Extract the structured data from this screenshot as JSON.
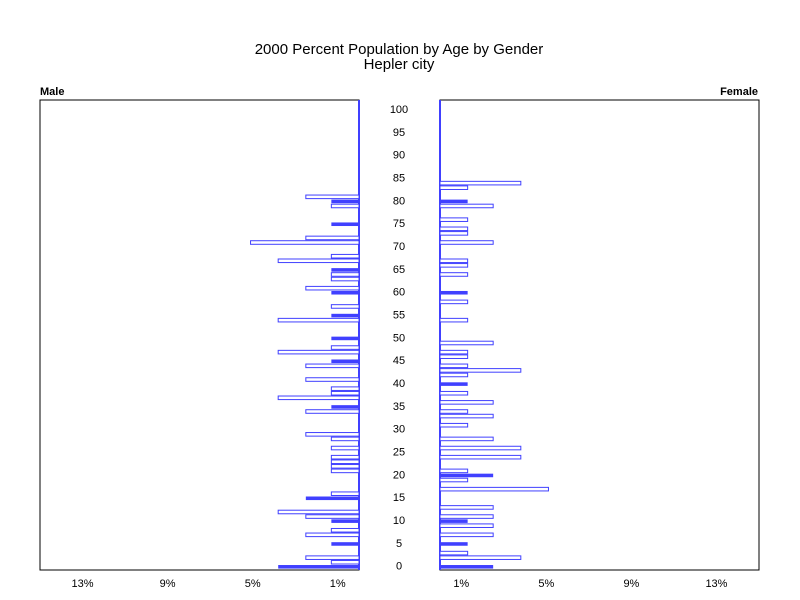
{
  "chart_data": {
    "type": "pyramid",
    "title": "2000 Percent Population by Age by Gender",
    "subtitle": "Hepler city",
    "ages": [
      0,
      1,
      2,
      3,
      4,
      5,
      6,
      7,
      8,
      9,
      10,
      11,
      12,
      13,
      14,
      15,
      16,
      17,
      18,
      19,
      20,
      21,
      22,
      23,
      24,
      25,
      26,
      27,
      28,
      29,
      30,
      31,
      32,
      33,
      34,
      35,
      36,
      37,
      38,
      39,
      40,
      41,
      42,
      43,
      44,
      45,
      46,
      47,
      48,
      49,
      50,
      51,
      52,
      53,
      54,
      55,
      56,
      57,
      58,
      59,
      60,
      61,
      62,
      63,
      64,
      65,
      66,
      67,
      68,
      69,
      70,
      71,
      72,
      73,
      74,
      75,
      76,
      77,
      78,
      79,
      80,
      81,
      82,
      83,
      84,
      85,
      86,
      87,
      88,
      89,
      90,
      91,
      92,
      93,
      94,
      95,
      96,
      97,
      98,
      99,
      100
    ],
    "age_lim": [
      -0.7,
      102.2
    ],
    "age_ticks": [
      0,
      5,
      10,
      15,
      20,
      25,
      30,
      35,
      40,
      45,
      50,
      55,
      60,
      65,
      70,
      75,
      80,
      85,
      90,
      95,
      100
    ],
    "series": [
      {
        "name": "Male",
        "color": "#4040ff",
        "xlim": [
          15,
          0
        ],
        "xticks": [
          {
            "value": 13,
            "label": "13%"
          },
          {
            "value": 9,
            "label": "9%"
          },
          {
            "value": 5,
            "label": "5%"
          },
          {
            "value": 1,
            "label": "1%"
          }
        ],
        "values": [
          3.8,
          1.3,
          2.5,
          0,
          0,
          1.3,
          0,
          2.5,
          1.3,
          0,
          1.3,
          2.5,
          3.8,
          0,
          0,
          2.5,
          1.3,
          0,
          0,
          0,
          0,
          1.3,
          1.3,
          1.3,
          1.3,
          0,
          1.3,
          0,
          1.3,
          2.5,
          0,
          0,
          0,
          0,
          2.5,
          1.3,
          0,
          3.8,
          1.3,
          1.3,
          0,
          2.5,
          0,
          0,
          2.5,
          1.3,
          0,
          3.8,
          1.3,
          0,
          1.3,
          0,
          0,
          0,
          3.8,
          1.3,
          0,
          1.3,
          0,
          0,
          1.3,
          2.5,
          0,
          1.3,
          1.3,
          1.3,
          0,
          3.8,
          1.3,
          0,
          0,
          5.1,
          2.5,
          0,
          0,
          1.3,
          0,
          0,
          0,
          1.3,
          1.3,
          2.5,
          0,
          0,
          0,
          0,
          0,
          0,
          0,
          0,
          0,
          0,
          0,
          0,
          0,
          0,
          0,
          0,
          0,
          0,
          0
        ]
      },
      {
        "name": "Female",
        "color": "#4040ff",
        "xlim": [
          0,
          15
        ],
        "xticks": [
          {
            "value": 1,
            "label": "1%"
          },
          {
            "value": 5,
            "label": "5%"
          },
          {
            "value": 9,
            "label": "9%"
          },
          {
            "value": 13,
            "label": "13%"
          }
        ],
        "values": [
          2.5,
          0,
          3.8,
          1.3,
          0,
          1.3,
          0,
          2.5,
          0,
          2.5,
          1.3,
          2.5,
          0,
          2.5,
          0,
          0,
          0,
          5.1,
          0,
          1.3,
          2.5,
          1.3,
          0,
          0,
          3.8,
          0,
          3.8,
          0,
          2.5,
          0,
          0,
          1.3,
          0,
          2.5,
          1.3,
          0,
          2.5,
          0,
          1.3,
          0,
          1.3,
          0,
          1.3,
          3.8,
          1.3,
          0,
          1.3,
          1.3,
          0,
          2.5,
          0,
          0,
          0,
          0,
          1.3,
          0,
          0,
          0,
          1.3,
          0,
          1.3,
          0,
          0,
          0,
          1.3,
          0,
          1.3,
          1.3,
          0,
          0,
          0,
          2.5,
          0,
          1.3,
          1.3,
          0,
          1.3,
          0,
          0,
          2.5,
          1.3,
          0,
          0,
          1.3,
          3.8,
          0,
          0,
          0,
          0,
          0,
          0,
          0,
          0,
          0,
          0,
          0,
          0,
          0,
          0,
          0,
          0
        ]
      }
    ]
  }
}
